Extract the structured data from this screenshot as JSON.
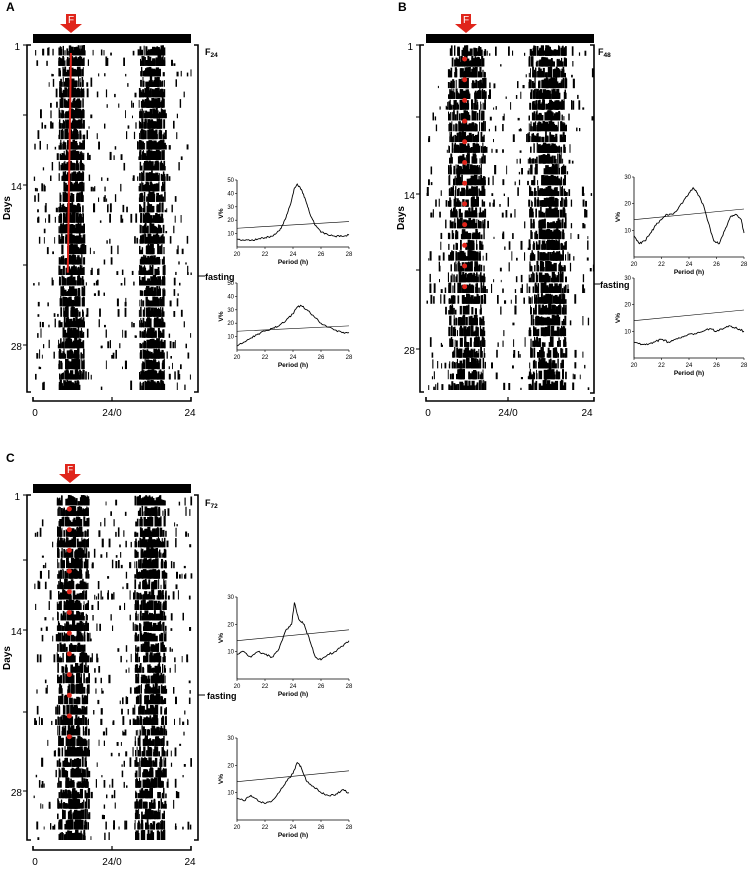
{
  "panels": [
    {
      "letter": "A",
      "fast_label": "F",
      "subscript_prefix": "F",
      "subscript": "24",
      "day_ticks": [
        "1",
        "14",
        "28"
      ],
      "y_label": "Days",
      "x_ticks": [
        "0",
        "24/0",
        "24"
      ],
      "fasting_label": "fasting",
      "marker": "line",
      "periodograms": [
        {
          "xlabel": "Period (h)",
          "ylabel": "V%",
          "xticks": [
            "20",
            "22",
            "24",
            "26",
            "28"
          ],
          "yticks": [
            "10",
            "20",
            "30",
            "40",
            "50"
          ],
          "ymax": 50,
          "x": [
            20,
            20.5,
            21,
            21.5,
            22,
            22.5,
            23,
            23.3,
            23.6,
            23.9,
            24.1,
            24.3,
            24.6,
            24.9,
            25.2,
            25.6,
            26,
            26.5,
            27,
            27.5,
            28
          ],
          "y": [
            6,
            5,
            5,
            6,
            7,
            8,
            12,
            17,
            25,
            35,
            44,
            47,
            43,
            35,
            25,
            16,
            11,
            9,
            8,
            8,
            9
          ],
          "threshold": [
            14,
            19
          ]
        },
        {
          "xlabel": "Period (h)",
          "ylabel": "V%",
          "xticks": [
            "20",
            "22",
            "24",
            "26",
            "28"
          ],
          "yticks": [
            "10",
            "20",
            "30",
            "40",
            "50"
          ],
          "ymax": 50,
          "x": [
            20,
            20.5,
            21,
            21.5,
            22,
            22.5,
            23,
            23.5,
            24,
            24.3,
            24.6,
            25,
            25.5,
            26,
            26.5,
            27,
            27.5,
            28
          ],
          "y": [
            3,
            6,
            9,
            12,
            14,
            16,
            18,
            22,
            27,
            32,
            33,
            30,
            25,
            20,
            17,
            15,
            13,
            13
          ],
          "threshold": [
            14,
            18
          ]
        }
      ]
    },
    {
      "letter": "B",
      "fast_label": "F",
      "subscript_prefix": "F",
      "subscript": "48",
      "day_ticks": [
        "1",
        "14",
        "28"
      ],
      "y_label": "Days",
      "x_ticks": [
        "0",
        "24/0",
        "24"
      ],
      "fasting_label": "fasting",
      "marker": "dots",
      "periodograms": [
        {
          "xlabel": "Period (h)",
          "ylabel": "V%",
          "xticks": [
            "20",
            "22",
            "24",
            "26",
            "28"
          ],
          "yticks": [
            "10",
            "20",
            "30"
          ],
          "ymax": 30,
          "x": [
            20,
            20.4,
            20.8,
            21.2,
            21.6,
            22,
            22.4,
            22.8,
            23.2,
            23.6,
            24,
            24.3,
            24.6,
            25,
            25.4,
            25.8,
            26.2,
            26.6,
            27,
            27.4,
            27.8,
            28
          ],
          "y": [
            8,
            5,
            6,
            9,
            12,
            14,
            16,
            16,
            18,
            21,
            24,
            26,
            24,
            20,
            13,
            6,
            5,
            10,
            15,
            16,
            14,
            9
          ],
          "threshold": [
            14,
            18
          ]
        },
        {
          "xlabel": "Period (h)",
          "ylabel": "V%",
          "xticks": [
            "20",
            "22",
            "24",
            "26",
            "28"
          ],
          "yticks": [
            "10",
            "20",
            "30"
          ],
          "ymax": 30,
          "x": [
            20,
            20.5,
            21,
            21.5,
            22,
            22.5,
            23,
            23.5,
            24,
            24.5,
            25,
            25.5,
            26,
            26.5,
            27,
            27.5,
            28
          ],
          "y": [
            6,
            5,
            5,
            6,
            7,
            6,
            7,
            8,
            9,
            9,
            10,
            11,
            10,
            11,
            12,
            11,
            10
          ],
          "threshold": [
            14,
            18
          ]
        }
      ]
    },
    {
      "letter": "C",
      "fast_label": "F",
      "subscript_prefix": "F",
      "subscript": "72",
      "day_ticks": [
        "1",
        "14",
        "28"
      ],
      "y_label": "Days",
      "x_ticks": [
        "0",
        "24/0",
        "24"
      ],
      "fasting_label": "fasting",
      "marker": "dots",
      "periodograms": [
        {
          "xlabel": "Period (h)",
          "ylabel": "V%",
          "xticks": [
            "20",
            "22",
            "24",
            "26",
            "28"
          ],
          "yticks": [
            "10",
            "20",
            "30"
          ],
          "ymax": 30,
          "x": [
            20,
            20.5,
            21,
            21.5,
            22,
            22.5,
            23,
            23.5,
            23.9,
            24.1,
            24.4,
            24.8,
            25.2,
            25.6,
            26,
            26.5,
            27,
            27.5,
            28
          ],
          "y": [
            9,
            10,
            8,
            10,
            9,
            8,
            11,
            18,
            20,
            28,
            22,
            20,
            14,
            8,
            7,
            9,
            10,
            12,
            14
          ],
          "threshold": [
            14,
            18
          ]
        },
        {
          "xlabel": "Period (h)",
          "ylabel": "V%",
          "xticks": [
            "20",
            "22",
            "24",
            "26",
            "28"
          ],
          "yticks": [
            "10",
            "20",
            "30"
          ],
          "ymax": 30,
          "x": [
            20,
            20.5,
            21,
            21.5,
            22,
            22.5,
            23,
            23.5,
            24,
            24.3,
            24.6,
            25,
            25.5,
            26,
            26.5,
            27,
            27.5,
            28
          ],
          "y": [
            8,
            7,
            9,
            7,
            6,
            7,
            10,
            14,
            17,
            21,
            19,
            14,
            12,
            10,
            9,
            9,
            11,
            10
          ],
          "threshold": [
            14,
            18
          ]
        }
      ]
    }
  ]
}
